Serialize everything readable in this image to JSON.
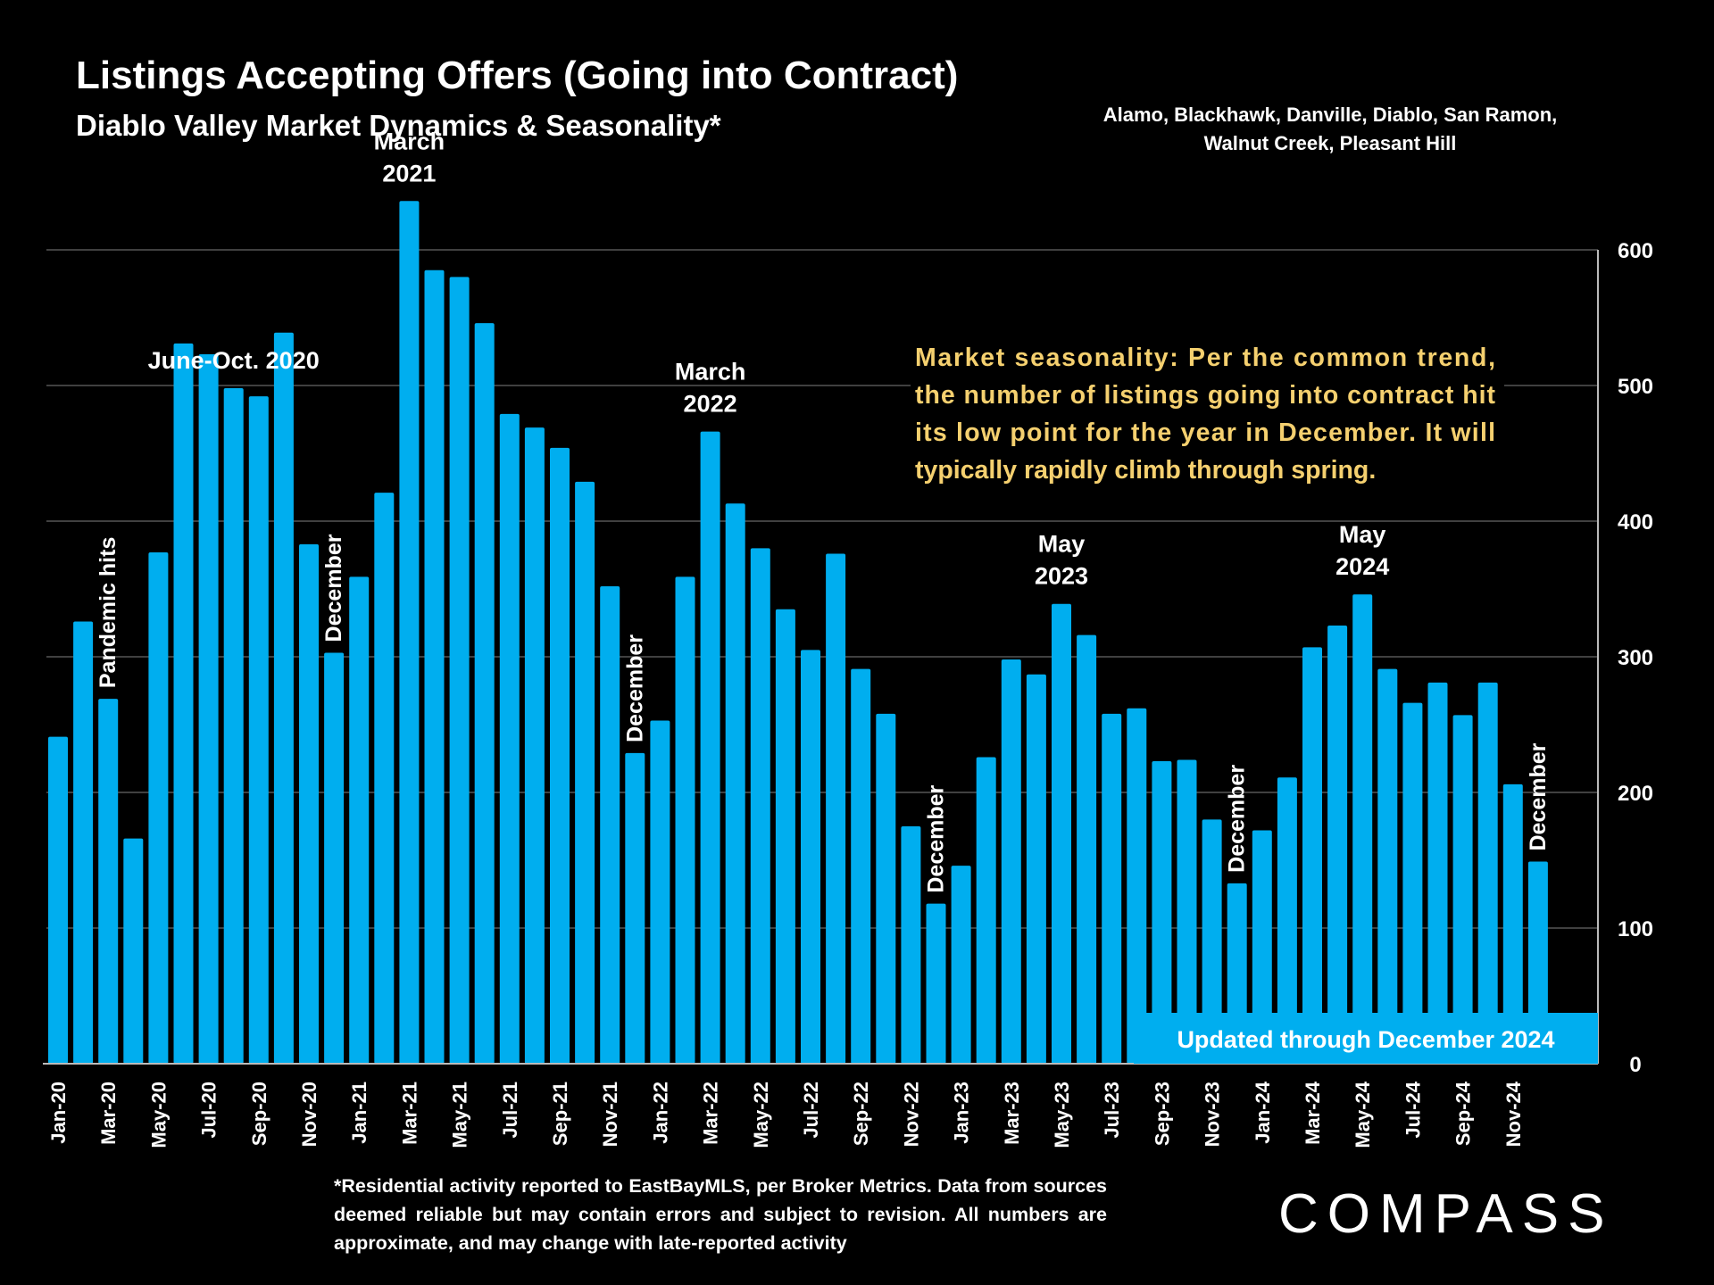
{
  "header": {
    "title": "Listings Accepting Offers (Going into Contract)",
    "subtitle": "Diablo Valley Market Dynamics & Seasonality*",
    "region": "Alamo, Blackhawk, Danville, Diablo, San Ramon, Walnut Creek, Pleasant Hill"
  },
  "footnote": "*Residential activity reported to EastBayMLS, per Broker Metrics. Data from sources deemed reliable but may contain errors and subject to revision. All numbers are approximate, and may change with late-reported activity",
  "brand": {
    "logo_text": "COMPASS"
  },
  "colors": {
    "bar": "#00AEEF",
    "background": "#000000",
    "note_text": "#F5D06F",
    "gridline": "#555555"
  },
  "chart_data": {
    "type": "bar",
    "ylim": [
      0,
      650
    ],
    "yticks": [
      0,
      100,
      200,
      300,
      400,
      500,
      600
    ],
    "y_axis_position": "right",
    "grid": true,
    "xtick_labels": [
      "Jan-20",
      "Mar-20",
      "May-20",
      "Jul-20",
      "Sep-20",
      "Nov-20",
      "Jan-21",
      "Mar-21",
      "May-21",
      "Jul-21",
      "Sep-21",
      "Nov-21",
      "Jan-22",
      "Mar-22",
      "May-22",
      "Jul-22",
      "Sep-22",
      "Nov-22",
      "Jan-23",
      "Mar-23",
      "May-23",
      "Jul-23",
      "Sep-23",
      "Nov-23",
      "Jan-24",
      "Mar-24",
      "May-24",
      "Jul-24",
      "Sep-24",
      "Nov-24"
    ],
    "categories": [
      "Jan-20",
      "Feb-20",
      "Mar-20",
      "Apr-20",
      "May-20",
      "Jun-20",
      "Jul-20",
      "Aug-20",
      "Sep-20",
      "Oct-20",
      "Nov-20",
      "Dec-20",
      "Jan-21",
      "Feb-21",
      "Mar-21",
      "Apr-21",
      "May-21",
      "Jun-21",
      "Jul-21",
      "Aug-21",
      "Sep-21",
      "Oct-21",
      "Nov-21",
      "Dec-21",
      "Jan-22",
      "Feb-22",
      "Mar-22",
      "Apr-22",
      "May-22",
      "Jun-22",
      "Jul-22",
      "Aug-22",
      "Sep-22",
      "Oct-22",
      "Nov-22",
      "Dec-22",
      "Jan-23",
      "Feb-23",
      "Mar-23",
      "Apr-23",
      "May-23",
      "Jun-23",
      "Jul-23",
      "Aug-23",
      "Sep-23",
      "Oct-23",
      "Nov-23",
      "Dec-23",
      "Jan-24",
      "Feb-24",
      "Mar-24",
      "Apr-24",
      "May-24",
      "Jun-24",
      "Jul-24",
      "Aug-24",
      "Sep-24",
      "Oct-24",
      "Nov-24",
      "Dec-24"
    ],
    "values": [
      241,
      326,
      269,
      166,
      377,
      531,
      523,
      498,
      492,
      539,
      383,
      303,
      359,
      421,
      636,
      585,
      580,
      546,
      479,
      469,
      454,
      429,
      352,
      229,
      253,
      359,
      466,
      413,
      380,
      335,
      305,
      376,
      291,
      258,
      175,
      118,
      146,
      226,
      298,
      287,
      339,
      316,
      258,
      262,
      223,
      224,
      180,
      133,
      172,
      211,
      307,
      323,
      346,
      291,
      266,
      281,
      257,
      281,
      206,
      149
    ],
    "annotations": [
      {
        "text": "Pandemic hits",
        "category": "Mar-20",
        "orientation": "vertical"
      },
      {
        "text": "June-Oct. 2020",
        "category": "Aug-20",
        "orientation": "horizontal"
      },
      {
        "text": "December",
        "category": "Dec-20",
        "orientation": "vertical"
      },
      {
        "text": "March 2021",
        "category": "Mar-21",
        "orientation": "horizontal"
      },
      {
        "text": "December",
        "category": "Dec-21",
        "orientation": "vertical"
      },
      {
        "text": "March 2022",
        "category": "Mar-22",
        "orientation": "horizontal"
      },
      {
        "text": "December",
        "category": "Dec-22",
        "orientation": "vertical"
      },
      {
        "text": "May 2023",
        "category": "May-23",
        "orientation": "horizontal"
      },
      {
        "text": "December",
        "category": "Dec-23",
        "orientation": "vertical"
      },
      {
        "text": "May 2024",
        "category": "May-24",
        "orientation": "horizontal"
      },
      {
        "text": "December",
        "category": "Dec-24",
        "orientation": "vertical"
      }
    ],
    "note": "Market seasonality:  Per the common trend, the number of listings going into contract hit its low point for the year in December. It will typically rapidly climb through spring.",
    "badge": "Updated through December 2024"
  }
}
